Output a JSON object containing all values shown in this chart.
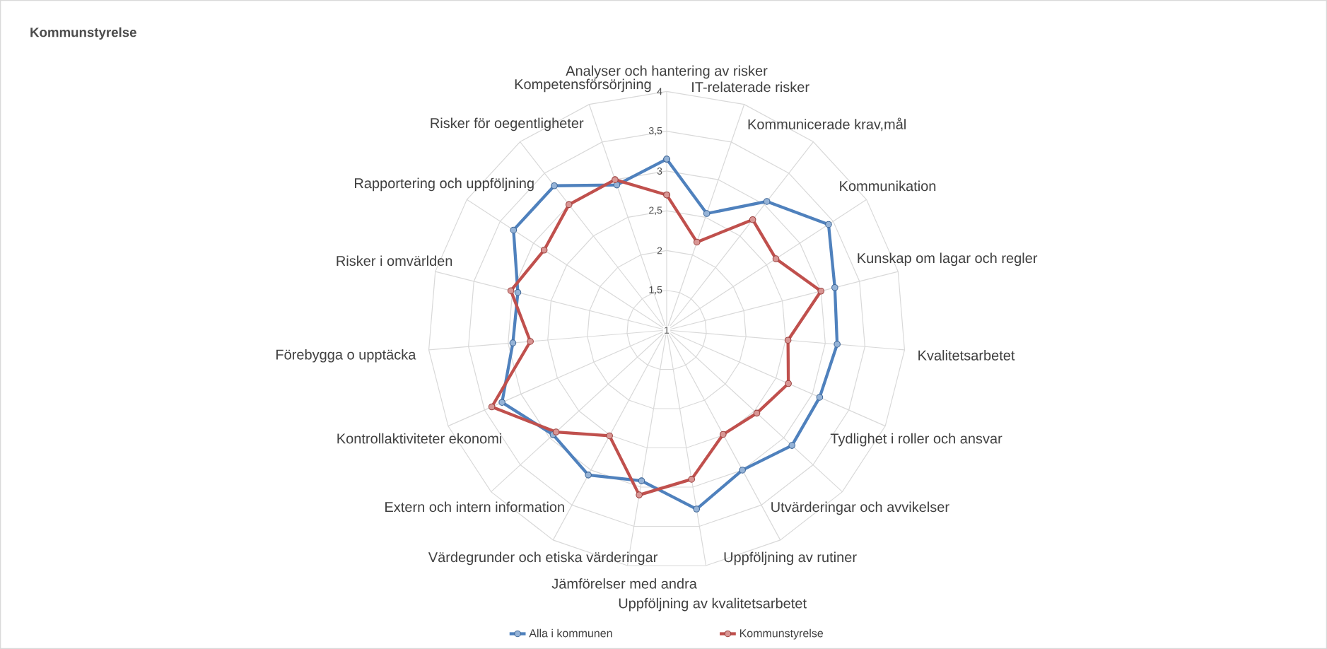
{
  "chart_data": {
    "type": "radar",
    "title": "Kommunstyrelse",
    "categories": [
      "Analyser och hantering av risker",
      "IT-relaterade risker",
      "Kommunicerade krav,mål",
      "Kommunikation",
      "Kunskap om lagar och regler",
      "Kvalitetsarbetet",
      "Tydlighet i roller och ansvar",
      "Utvärderingar och avvikelser",
      "Uppföljning av rutiner",
      "Uppföljning av kvalitetsarbetet",
      "Jämförelser med andra",
      "Värdegrunder och etiska värderingar",
      "Extern och intern information",
      "Kontrollaktiviteter ekonomi",
      "Förebygga o upptäcka",
      "Risker i  omvärlden",
      "Rapportering och uppföljning",
      "Risker för oegentligheter",
      "Kompetensförsörjning"
    ],
    "series": [
      {
        "name": "Alla i kommunen",
        "color": "#4f81bd",
        "values": [
          3.15,
          2.55,
          3.05,
          3.43,
          3.18,
          3.15,
          3.1,
          3.14,
          3.0,
          3.28,
          2.92,
          3.07,
          2.94,
          3.26,
          2.94,
          2.93,
          3.3,
          3.3,
          2.93
        ]
      },
      {
        "name": "Kommunstyrelse",
        "color": "#c0504d",
        "values": [
          2.7,
          2.17,
          2.76,
          2.64,
          3.0,
          2.53,
          2.67,
          2.54,
          2.49,
          2.9,
          3.1,
          2.51,
          2.89,
          3.4,
          2.72,
          3.02,
          2.84,
          3.0,
          3.0
        ]
      }
    ],
    "ylim": [
      1,
      4
    ],
    "yticks": [
      1,
      {
        "value": 1.5,
        "label": "1,5"
      },
      2,
      {
        "value": 2.5,
        "label": "2,5"
      },
      3,
      {
        "value": 3.5,
        "label": "3,5"
      },
      4
    ],
    "grid": true,
    "legend": "bottom",
    "marker": "circle"
  }
}
